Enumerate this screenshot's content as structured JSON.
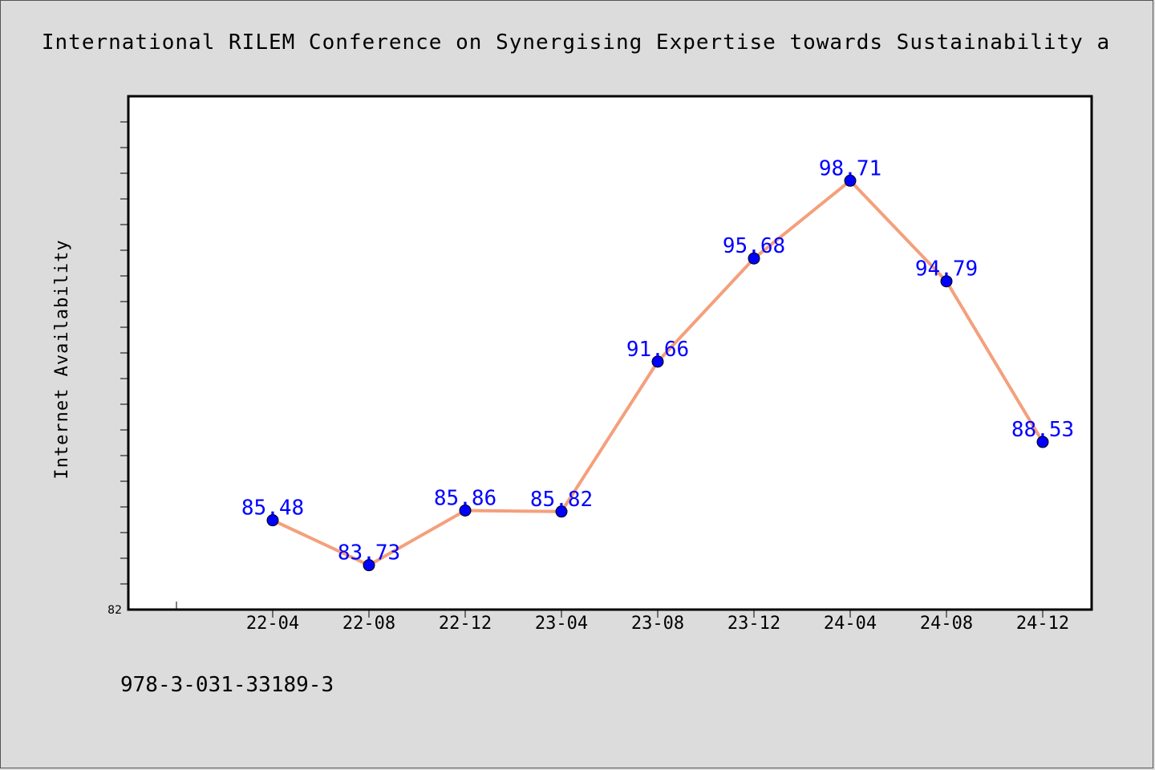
{
  "chart_data": {
    "type": "line",
    "title": "International RILEM Conference on Synergising Expertise towards Sustainability a",
    "xlabel": "",
    "ylabel": "Internet Availability",
    "categories": [
      "22-04",
      "22-08",
      "22-12",
      "23-04",
      "23-08",
      "23-12",
      "24-04",
      "24-08",
      "24-12"
    ],
    "series": [
      {
        "values": [
          85.48,
          83.73,
          85.86,
          85.82,
          91.66,
          95.68,
          98.71,
          94.79,
          88.53
        ],
        "labels": [
          "85.48",
          "83.73",
          "85.86",
          "85.82",
          "91.66",
          "95.68",
          "98.71",
          "94.79",
          "88.53"
        ]
      }
    ],
    "ylim": [
      82,
      102
    ],
    "ytick_labels": [
      "82"
    ],
    "grid": false,
    "legend": "none",
    "colors": {
      "line": "#f4a07c",
      "marker": "#0000ff",
      "label": "#0000ff",
      "plot_background": "#ffffff",
      "page_background": "#dcdcdc"
    }
  },
  "footer": {
    "isbn": "978-3-031-33189-3"
  }
}
